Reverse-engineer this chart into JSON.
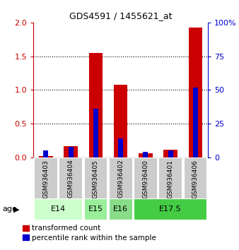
{
  "title": "GDS4591 / 1455621_at",
  "samples": [
    "GSM936403",
    "GSM936404",
    "GSM936405",
    "GSM936402",
    "GSM936400",
    "GSM936401",
    "GSM936406"
  ],
  "transformed_count": [
    0.02,
    0.17,
    1.55,
    1.08,
    0.06,
    0.12,
    1.93
  ],
  "percentile_rank_pct": [
    5,
    8,
    36,
    14,
    4,
    5,
    52
  ],
  "age_groups": [
    {
      "label": "E14",
      "samples": [
        "GSM936403",
        "GSM936404"
      ],
      "color": "#ccffcc"
    },
    {
      "label": "E15",
      "samples": [
        "GSM936405"
      ],
      "color": "#99ee99"
    },
    {
      "label": "E16",
      "samples": [
        "GSM936402"
      ],
      "color": "#88dd88"
    },
    {
      "label": "E17.5",
      "samples": [
        "GSM936400",
        "GSM936401",
        "GSM936406"
      ],
      "color": "#44cc44"
    }
  ],
  "ylim_left": [
    0,
    2
  ],
  "ylim_right": [
    0,
    100
  ],
  "yticks_left": [
    0,
    0.5,
    1.0,
    1.5,
    2.0
  ],
  "yticks_right": [
    0,
    25,
    50,
    75,
    100
  ],
  "bar_color_red": "#cc0000",
  "bar_color_blue": "#0000cc",
  "red_bar_width": 0.55,
  "blue_bar_width": 0.2,
  "legend_red": "transformed count",
  "legend_blue": "percentile rank within the sample",
  "age_label": "age",
  "background_color": "#ffffff",
  "sample_box_color": "#cccccc"
}
